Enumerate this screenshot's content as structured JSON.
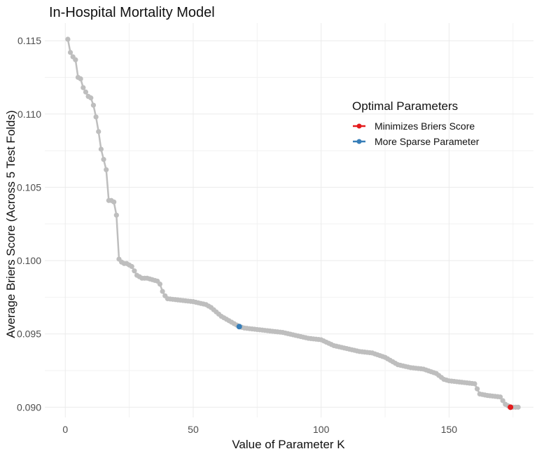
{
  "chart_data": {
    "type": "line",
    "title": "In-Hospital Mortality Model",
    "xlabel": "Value of Parameter K",
    "ylabel": "Average Briers Score (Across 5 Test Folds)",
    "xlim": [
      -8,
      183
    ],
    "ylim": [
      0.0893,
      0.1162
    ],
    "x_ticks": [
      0,
      50,
      100,
      150
    ],
    "x_tick_labels": [
      "0",
      "50",
      "100",
      "150"
    ],
    "y_ticks": [
      0.09,
      0.095,
      0.1,
      0.105,
      0.11,
      0.115
    ],
    "y_tick_labels": [
      "0.090",
      "0.095",
      "0.100",
      "0.105",
      "0.110",
      "0.115"
    ],
    "grid": true,
    "series_color": "#bebebe",
    "anchors": [
      [
        1,
        0.1151
      ],
      [
        2,
        0.1142
      ],
      [
        3,
        0.1139
      ],
      [
        4,
        0.1137
      ],
      [
        5,
        0.1125
      ],
      [
        6,
        0.1124
      ],
      [
        7,
        0.1118
      ],
      [
        8,
        0.1115
      ],
      [
        9,
        0.1112
      ],
      [
        10,
        0.1111
      ],
      [
        11,
        0.1106
      ],
      [
        12,
        0.1098
      ],
      [
        13,
        0.1088
      ],
      [
        14,
        0.1076
      ],
      [
        15,
        0.1069
      ],
      [
        16,
        0.1062
      ],
      [
        17,
        0.1041
      ],
      [
        18,
        0.1041
      ],
      [
        19,
        0.104
      ],
      [
        20,
        0.1031
      ],
      [
        21,
        0.1001
      ],
      [
        22,
        0.0999
      ],
      [
        23,
        0.0998
      ],
      [
        24,
        0.0998
      ],
      [
        25,
        0.0997
      ],
      [
        26,
        0.0996
      ],
      [
        27,
        0.0993
      ],
      [
        28,
        0.099
      ],
      [
        29,
        0.0989
      ],
      [
        30,
        0.0988
      ],
      [
        32,
        0.0988
      ],
      [
        34,
        0.0987
      ],
      [
        36,
        0.0986
      ],
      [
        37,
        0.0984
      ],
      [
        38,
        0.0979
      ],
      [
        39,
        0.0976
      ],
      [
        40,
        0.0974
      ],
      [
        45,
        0.0973
      ],
      [
        50,
        0.0972
      ],
      [
        55,
        0.097
      ],
      [
        57,
        0.0968
      ],
      [
        59,
        0.0965
      ],
      [
        61,
        0.0962
      ],
      [
        63,
        0.096
      ],
      [
        65,
        0.0958
      ],
      [
        68,
        0.0955
      ],
      [
        70,
        0.0954
      ],
      [
        75,
        0.0953
      ],
      [
        80,
        0.0952
      ],
      [
        85,
        0.0951
      ],
      [
        90,
        0.0949
      ],
      [
        95,
        0.0947
      ],
      [
        100,
        0.0946
      ],
      [
        105,
        0.0942
      ],
      [
        110,
        0.094
      ],
      [
        115,
        0.0938
      ],
      [
        120,
        0.0937
      ],
      [
        125,
        0.0934
      ],
      [
        130,
        0.0929
      ],
      [
        135,
        0.0927
      ],
      [
        140,
        0.0926
      ],
      [
        145,
        0.0923
      ],
      [
        148,
        0.0919
      ],
      [
        150,
        0.0918
      ],
      [
        155,
        0.0917
      ],
      [
        160,
        0.0916
      ],
      [
        162,
        0.0909
      ],
      [
        165,
        0.0908
      ],
      [
        170,
        0.0907
      ],
      [
        172,
        0.0902
      ],
      [
        174,
        0.09
      ],
      [
        177,
        0.09
      ]
    ],
    "highlights": [
      {
        "name": "Minimizes Briers Score",
        "x": 174,
        "y": 0.09,
        "color": "#e41a1c"
      },
      {
        "name": "More Sparse Parameter",
        "x": 68,
        "y": 0.0955,
        "color": "#377eb8"
      }
    ],
    "legend": {
      "title": "Optimal Parameters",
      "placement": "right",
      "entries": [
        {
          "label": "Minimizes Briers Score",
          "color": "#e41a1c"
        },
        {
          "label": "More Sparse Parameter",
          "color": "#377eb8"
        }
      ]
    }
  }
}
